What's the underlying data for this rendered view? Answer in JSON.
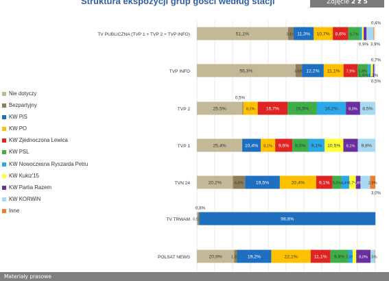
{
  "page": {
    "title": "Struktura ekspozycji grup gości według stacji",
    "photo_counter_prefix": "Zdjęcie ",
    "photo_counter_current": "2",
    "photo_counter_sep": " z ",
    "photo_counter_total": "5",
    "footer": "Materiały prasowe"
  },
  "colors": {
    "nie_dotyczy": "#c4b997",
    "bezpartyjny": "#8c7f59",
    "pis": "#1f6fc0",
    "po": "#ffc000",
    "lewica": "#e02424",
    "psl": "#3fae49",
    "nowoczesna": "#2aa8e8",
    "kukiz": "#ffff33",
    "razem": "#6b2e9e",
    "korwin": "#a9d9f2",
    "inne": "#ed7d31"
  },
  "chart_data": {
    "type": "bar",
    "orientation": "horizontal",
    "stacked": true,
    "title": "Struktura ekspozycji grup gości według stacji",
    "xlim": [
      0,
      100
    ],
    "legend_placement": "left",
    "grid": true,
    "categories": [
      "TV PUBLICZNA (TVP 1 + TVP 2 + TVP INFO)",
      "TVP INFO",
      "TVP 2",
      "TVP 1",
      "TVN 24",
      "TV TRWAM",
      "POLSAT NEWS"
    ],
    "series": [
      {
        "name": "Nie dotyczy",
        "key": "nie_dotyczy",
        "values": [
          51.1,
          55.3,
          25.5,
          25.4,
          20.2,
          0.5,
          20.9
        ]
      },
      {
        "name": "Bezpartyjny",
        "key": "bezpartyjny",
        "values": [
          3.1,
          3.6,
          0.5,
          0,
          6.8,
          0.8,
          1.6
        ]
      },
      {
        "name": "KW PiS",
        "key": "pis",
        "values": [
          11.3,
          12.2,
          0,
          10.4,
          19.5,
          98.8,
          19.2
        ]
      },
      {
        "name": "KW PO",
        "key": "po",
        "values": [
          10.7,
          11.1,
          8.1,
          8.1,
          20.4,
          0,
          22.1
        ]
      },
      {
        "name": "KW Zjednoczona Lewica",
        "key": "lewica",
        "values": [
          8.6,
          7.9,
          16.7,
          9.6,
          9.1,
          0,
          11.1
        ]
      },
      {
        "name": "KW PSL",
        "key": "psl",
        "values": [
          6.7,
          5.8,
          16.5,
          9.0,
          5.0,
          0,
          9.9
        ]
      },
      {
        "name": "KW Nowoczesna Ryszarda Petru",
        "key": "nowoczesna",
        "values": [
          1.1,
          1.6,
          16.2,
          9.1,
          4.4,
          0,
          2.5
        ]
      },
      {
        "name": "KW Kukiz'15",
        "key": "kukiz",
        "values": [
          0.9,
          1.2,
          0,
          10.5,
          3.7,
          0,
          2.0
        ]
      },
      {
        "name": "KW Partia Razem",
        "key": "razem",
        "values": [
          1.6,
          0.7,
          8.0,
          8.1,
          2.6,
          0,
          8.0
        ]
      },
      {
        "name": "KW KORWiN",
        "key": "korwin",
        "values": [
          3.9,
          0.5,
          8.5,
          9.8,
          5.4,
          0,
          2.5
        ]
      },
      {
        "name": "Inne",
        "key": "inne",
        "values": [
          0.4,
          0,
          0,
          0,
          2.9,
          0,
          0.2
        ]
      }
    ],
    "data_labels": [
      [
        "51,1%",
        "3,1%",
        "11,3%",
        "10,7%",
        "8,6%",
        "6,7%",
        "",
        "",
        "",
        "",
        ""
      ],
      [
        "55,3%",
        "3,6%",
        "12,2%",
        "11,1%",
        "7,9%",
        "5,8%",
        "",
        "",
        "",
        "",
        ""
      ],
      [
        "25,5%",
        "",
        "",
        "8,1%",
        "16,7%",
        "16,5%",
        "16,2%",
        "",
        "8,0%",
        "8,5%",
        ""
      ],
      [
        "25,4%",
        "",
        "10,4%",
        "8,1%",
        "9,6%",
        "9,0%",
        "9,1%",
        "10,5%",
        "8,1%",
        "9,8%",
        ""
      ],
      [
        "20,2%",
        "6,8%",
        "19,5%",
        "20,4%",
        "9,1%",
        "5,0%",
        "4,4%",
        "3,7%",
        "2,6%",
        "",
        "2,9%"
      ],
      [
        "0,5%",
        "",
        "98,8%",
        "",
        "",
        "",
        "",
        "",
        "",
        "",
        ""
      ],
      [
        "20,9%",
        "1,6%",
        "19,2%",
        "22,1%",
        "11,1%",
        "9,9%",
        "2,5%",
        "",
        "8,0%",
        "2,5%",
        ""
      ]
    ],
    "annotations": [
      {
        "text": "0,4%",
        "row": 0,
        "pos": "above"
      },
      {
        "text": "0,9%",
        "row": 0,
        "pos": "below"
      },
      {
        "text": "3,9%",
        "row": 0,
        "pos": "below"
      },
      {
        "text": "0,7%",
        "row": 1,
        "pos": "above"
      },
      {
        "text": "1,6%",
        "row": 1,
        "pos": "right"
      },
      {
        "text": "1,2%",
        "row": 1,
        "pos": "right"
      },
      {
        "text": "0,5%",
        "row": 1,
        "pos": "below"
      },
      {
        "text": "0,5%",
        "row": 2,
        "pos": "above"
      },
      {
        "text": "3,0%",
        "row": 4,
        "pos": "below"
      },
      {
        "text": "0,8%",
        "row": 5,
        "pos": "above"
      }
    ]
  }
}
